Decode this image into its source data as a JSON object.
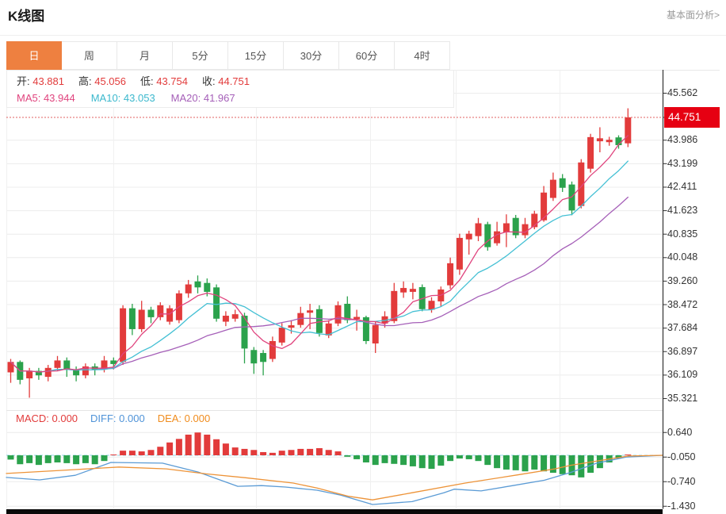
{
  "header": {
    "title": "K线图",
    "link": "基本面分析>"
  },
  "tabs": {
    "active_index": 0,
    "items": [
      {
        "label": "日",
        "name": "tab-day"
      },
      {
        "label": "周",
        "name": "tab-week"
      },
      {
        "label": "月",
        "name": "tab-month"
      },
      {
        "label": "5分",
        "name": "tab-5min"
      },
      {
        "label": "15分",
        "name": "tab-15min"
      },
      {
        "label": "30分",
        "name": "tab-30min"
      },
      {
        "label": "60分",
        "name": "tab-60min"
      },
      {
        "label": "4时",
        "name": "tab-4hour"
      }
    ]
  },
  "legend": {
    "ohlc": [
      {
        "label": "开:",
        "value": "43.881"
      },
      {
        "label": "高:",
        "value": "45.056"
      },
      {
        "label": "低:",
        "value": "43.754"
      },
      {
        "label": "收:",
        "value": "44.751"
      }
    ],
    "ma": [
      {
        "label": "MA5:",
        "value": "43.944",
        "color": "#e0447e"
      },
      {
        "label": "MA10:",
        "value": "43.053",
        "color": "#3bb8cd"
      },
      {
        "label": "MA20:",
        "value": "41.967",
        "color": "#a55fb8"
      }
    ]
  },
  "macd_legend": [
    {
      "label": "MACD:",
      "value": "0.000",
      "color": "#e23b3b"
    },
    {
      "label": "DIFF:",
      "value": "0.000",
      "color": "#4f93d8"
    },
    {
      "label": "DEA:",
      "value": "0.000",
      "color": "#f08c1e"
    }
  ],
  "price_tag": "44.751",
  "colors": {
    "up": "#e23b3b",
    "down": "#2ba24c",
    "ma5": "#e0447e",
    "ma10": "#44c0d4",
    "ma20": "#a55fb8",
    "diff_line": "#5b9bd5",
    "dea_line": "#ed9338",
    "zero_line": "#8fd4e8",
    "grid": "#ececec",
    "axis": "#333333",
    "price_line": "#e06060",
    "tag_bg": "#e60012"
  },
  "chart_data": {
    "type": "candlestick",
    "panels": [
      {
        "name": "price",
        "y_ticks": [
          45.562,
          43.986,
          43.199,
          42.411,
          41.623,
          40.835,
          40.048,
          39.26,
          38.472,
          37.684,
          36.897,
          36.109,
          35.321
        ],
        "y_range": [
          35.321,
          45.562
        ],
        "current_price": 44.751,
        "x_gridlines": [
          143,
          323,
          467,
          575,
          706
        ],
        "ma_windows": [
          20,
          10,
          5
        ],
        "ohlc_order": [
          "open",
          "close",
          "low",
          "high"
        ],
        "candles": [
          [
            36.2,
            36.55,
            35.85,
            36.65
          ],
          [
            36.55,
            35.95,
            35.8,
            36.6
          ],
          [
            36.0,
            36.25,
            35.35,
            36.35
          ],
          [
            36.25,
            36.1,
            35.95,
            36.35
          ],
          [
            36.05,
            36.35,
            35.9,
            36.45
          ],
          [
            36.35,
            36.6,
            36.25,
            36.75
          ],
          [
            36.6,
            36.3,
            36.05,
            36.7
          ],
          [
            36.3,
            36.1,
            35.9,
            36.4
          ],
          [
            36.1,
            36.4,
            36.0,
            36.5
          ],
          [
            36.4,
            36.3,
            36.1,
            36.5
          ],
          [
            36.3,
            36.6,
            36.2,
            36.75
          ],
          [
            36.6,
            36.48,
            36.3,
            36.7
          ],
          [
            36.55,
            38.35,
            36.45,
            38.45
          ],
          [
            38.35,
            37.65,
            37.45,
            38.5
          ],
          [
            37.65,
            38.3,
            37.55,
            38.6
          ],
          [
            38.3,
            38.05,
            37.85,
            38.4
          ],
          [
            38.05,
            38.45,
            37.95,
            38.55
          ],
          [
            37.9,
            38.35,
            37.8,
            38.45
          ],
          [
            37.95,
            38.85,
            37.85,
            38.95
          ],
          [
            38.85,
            39.15,
            38.7,
            39.3
          ],
          [
            39.25,
            39.05,
            38.85,
            39.45
          ],
          [
            39.2,
            38.9,
            38.75,
            39.35
          ],
          [
            39.05,
            38.0,
            37.9,
            39.15
          ],
          [
            37.9,
            38.1,
            37.75,
            38.25
          ],
          [
            38.0,
            38.15,
            37.9,
            38.3
          ],
          [
            38.1,
            37.0,
            36.5,
            38.2
          ],
          [
            36.95,
            36.5,
            36.15,
            37.05
          ],
          [
            36.85,
            36.55,
            36.1,
            36.95
          ],
          [
            36.65,
            37.25,
            36.55,
            37.4
          ],
          [
            37.2,
            37.7,
            37.1,
            37.85
          ],
          [
            37.7,
            37.78,
            37.5,
            37.95
          ],
          [
            37.79,
            38.19,
            37.7,
            38.4
          ],
          [
            38.2,
            38.28,
            37.65,
            38.5
          ],
          [
            38.32,
            37.52,
            37.4,
            38.45
          ],
          [
            37.44,
            37.84,
            37.35,
            37.95
          ],
          [
            37.84,
            38.45,
            37.75,
            38.58
          ],
          [
            38.5,
            37.95,
            37.85,
            38.75
          ],
          [
            37.98,
            38.06,
            37.6,
            38.3
          ],
          [
            38.05,
            37.25,
            37.15,
            38.1
          ],
          [
            37.17,
            37.79,
            36.85,
            37.9
          ],
          [
            37.84,
            38.08,
            37.7,
            38.25
          ],
          [
            37.92,
            38.93,
            37.85,
            39.2
          ],
          [
            38.88,
            39.03,
            38.7,
            39.25
          ],
          [
            38.9,
            39.0,
            38.65,
            39.2
          ],
          [
            39.06,
            38.32,
            38.25,
            39.15
          ],
          [
            38.3,
            38.6,
            38.2,
            38.72
          ],
          [
            38.58,
            38.98,
            38.4,
            39.08
          ],
          [
            39.12,
            39.86,
            39.0,
            40.05
          ],
          [
            39.65,
            40.71,
            39.47,
            40.85
          ],
          [
            40.66,
            40.85,
            40.15,
            40.95
          ],
          [
            40.77,
            41.2,
            40.6,
            41.38
          ],
          [
            41.17,
            40.4,
            40.28,
            41.25
          ],
          [
            40.53,
            40.93,
            40.45,
            41.25
          ],
          [
            40.9,
            41.2,
            40.4,
            41.5
          ],
          [
            41.38,
            40.8,
            40.7,
            41.48
          ],
          [
            40.8,
            41.17,
            40.7,
            41.38
          ],
          [
            41.07,
            41.52,
            41.0,
            41.62
          ],
          [
            41.3,
            42.23,
            41.25,
            42.45
          ],
          [
            42.05,
            42.66,
            41.95,
            42.9
          ],
          [
            42.71,
            42.39,
            42.25,
            42.85
          ],
          [
            42.5,
            41.63,
            41.47,
            42.6
          ],
          [
            41.78,
            43.24,
            41.7,
            43.35
          ],
          [
            43.03,
            44.09,
            42.9,
            44.2
          ],
          [
            43.95,
            44.05,
            43.58,
            44.42
          ],
          [
            43.92,
            44.0,
            43.8,
            44.1
          ],
          [
            44.08,
            43.82,
            43.7,
            44.15
          ],
          [
            43.881,
            44.751,
            43.754,
            45.056
          ]
        ]
      },
      {
        "name": "macd",
        "y_ticks": [
          0.64,
          -0.05,
          -0.74,
          -1.43
        ],
        "zero": 0.0,
        "hist": [
          -0.12,
          -0.25,
          -0.22,
          -0.27,
          -0.22,
          -0.2,
          -0.22,
          -0.25,
          -0.22,
          -0.25,
          -0.16,
          0.02,
          0.13,
          0.13,
          0.11,
          0.15,
          0.24,
          0.36,
          0.46,
          0.58,
          0.64,
          0.58,
          0.45,
          0.33,
          0.22,
          0.18,
          0.15,
          0.09,
          0.07,
          0.13,
          0.15,
          0.18,
          0.18,
          0.2,
          0.15,
          0.11,
          -0.04,
          -0.11,
          -0.2,
          -0.27,
          -0.22,
          -0.24,
          -0.27,
          -0.31,
          -0.36,
          -0.38,
          -0.29,
          -0.16,
          -0.09,
          -0.11,
          -0.16,
          -0.27,
          -0.36,
          -0.4,
          -0.42,
          -0.45,
          -0.4,
          -0.45,
          -0.49,
          -0.53,
          -0.56,
          -0.62,
          -0.49,
          -0.36,
          -0.2,
          -0.09,
          0.0
        ],
        "diff": [
          [
            8,
            -0.62
          ],
          [
            50,
            -0.69
          ],
          [
            95,
            -0.56
          ],
          [
            140,
            -0.2
          ],
          [
            205,
            -0.22
          ],
          [
            250,
            -0.47
          ],
          [
            300,
            -0.87
          ],
          [
            330,
            -0.85
          ],
          [
            360,
            -0.89
          ],
          [
            400,
            -0.98
          ],
          [
            430,
            -1.12
          ],
          [
            470,
            -1.38
          ],
          [
            520,
            -1.3
          ],
          [
            560,
            -1.05
          ],
          [
            573,
            -0.95
          ],
          [
            607,
            -1.0
          ],
          [
            647,
            -0.85
          ],
          [
            687,
            -0.7
          ],
          [
            720,
            -0.48
          ],
          [
            753,
            -0.22
          ],
          [
            790,
            -0.05
          ],
          [
            836,
            0.0
          ]
        ],
        "dea": [
          [
            8,
            -0.51
          ],
          [
            80,
            -0.42
          ],
          [
            150,
            -0.33
          ],
          [
            210,
            -0.38
          ],
          [
            260,
            -0.52
          ],
          [
            310,
            -0.63
          ],
          [
            370,
            -0.78
          ],
          [
            400,
            -0.92
          ],
          [
            440,
            -1.15
          ],
          [
            470,
            -1.25
          ],
          [
            520,
            -1.05
          ],
          [
            587,
            -0.78
          ],
          [
            653,
            -0.55
          ],
          [
            700,
            -0.38
          ],
          [
            720,
            -0.28
          ],
          [
            770,
            -0.1
          ],
          [
            793,
            -0.02
          ],
          [
            836,
            0.0
          ]
        ]
      }
    ]
  }
}
